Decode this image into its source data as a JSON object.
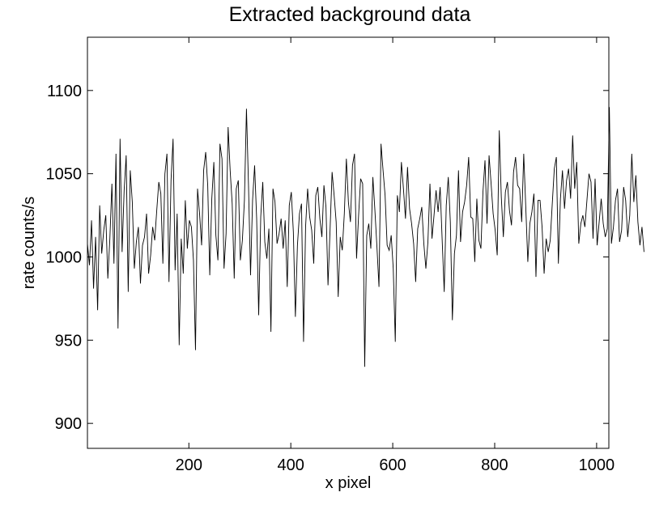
{
  "chart_data": {
    "type": "line",
    "title": "Extracted background data",
    "xlabel": "x pixel",
    "ylabel": "rate counts/s",
    "xlim": [
      1,
      1024
    ],
    "ylim": [
      885,
      1132
    ],
    "xticks": [
      200,
      400,
      600,
      800,
      1000
    ],
    "yticks": [
      900,
      950,
      1000,
      1050,
      1100
    ],
    "grid": false,
    "legend": "none",
    "line_color": "#000000",
    "series": [
      {
        "x_start": 1,
        "x_step": 4,
        "values": [
          1008,
          995,
          1022,
          981,
          1012,
          968,
          1031,
          1002,
          1016,
          1025,
          987,
          1011,
          1044,
          996,
          1062,
          957,
          1071,
          1003,
          1040,
          1061,
          979,
          1052,
          1033,
          993,
          1009,
          1018,
          984,
          1007,
          1012,
          1026,
          990,
          1001,
          1018,
          1010,
          1028,
          1045,
          1038,
          996,
          1050,
          1062,
          985,
          1046,
          1071,
          992,
          1026,
          947,
          1011,
          990,
          1034,
          1005,
          1022,
          1018,
          998,
          944,
          1041,
          1026,
          1007,
          1052,
          1063,
          1043,
          989,
          1035,
          1057,
          1013,
          998,
          1068,
          1059,
          993,
          1014,
          1078,
          1052,
          1032,
          987,
          1041,
          1046,
          998,
          1010,
          1034,
          1089,
          1043,
          989,
          1034,
          1055,
          1023,
          965,
          1024,
          1045,
          1009,
          999,
          1017,
          955,
          1041,
          1033,
          1008,
          1014,
          1023,
          1005,
          1022,
          982,
          1031,
          1039,
          1015,
          964,
          1007,
          1026,
          1032,
          949,
          1018,
          1041,
          1024,
          1016,
          996,
          1037,
          1042,
          1023,
          1012,
          1043,
          1030,
          983,
          1016,
          1051,
          1037,
          1021,
          976,
          1012,
          1004,
          1026,
          1059,
          1033,
          1021,
          1055,
          1062,
          999,
          1025,
          1047,
          1044,
          934,
          1013,
          1020,
          1005,
          1048,
          1028,
          1006,
          982,
          1068,
          1052,
          1037,
          1007,
          1004,
          1013,
          993,
          949,
          1037,
          1027,
          1057,
          1041,
          1023,
          1054,
          1029,
          1020,
          1008,
          985,
          1017,
          1023,
          1030,
          1008,
          993,
          1009,
          1044,
          1011,
          1025,
          1040,
          1027,
          1042,
          1010,
          979,
          1031,
          1048,
          1021,
          962,
          1002,
          1013,
          1052,
          1009,
          1027,
          1033,
          1043,
          1060,
          1024,
          1023,
          997,
          1035,
          1010,
          1005,
          1039,
          1058,
          1020,
          1061,
          1044,
          1026,
          1016,
          1001,
          1076,
          1036,
          1012,
          1039,
          1045,
          1028,
          1019,
          1051,
          1060,
          1043,
          1041,
          1021,
          1062,
          1030,
          997,
          1020,
          1027,
          1038,
          988,
          1034,
          1034,
          1018,
          990,
          1011,
          1003,
          1010,
          1032,
          1053,
          1060,
          996,
          1035,
          1052,
          1029,
          1046,
          1053,
          1035,
          1073,
          1041,
          1057,
          1008,
          1020,
          1025,
          1018,
          1034,
          1050,
          1045,
          1011,
          1047,
          1007,
          1021,
          1035,
          1020,
          1012,
          1017,
          1090,
          1008,
          1018,
          1034,
          1041,
          1009,
          1016,
          1042,
          1034,
          1012,
          1025,
          1062,
          1033,
          1049,
          1021,
          1007,
          1018,
          1003
        ]
      }
    ]
  }
}
